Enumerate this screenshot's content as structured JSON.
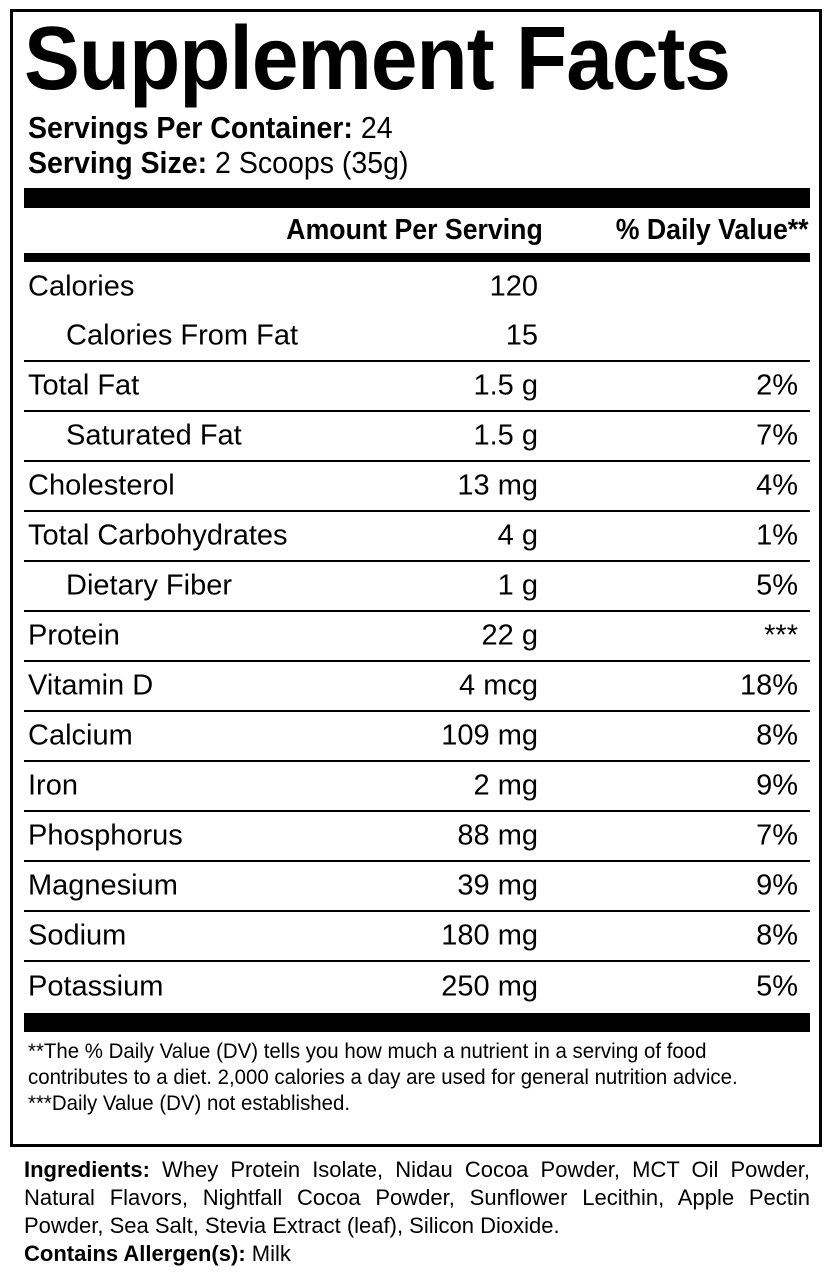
{
  "title": "Supplement Facts",
  "servings_per_container_label": "Servings Per Container:",
  "servings_per_container": "24",
  "serving_size_label": "Serving Size:",
  "serving_size": "2 Scoops (35g)",
  "header": {
    "amount": "Amount Per Serving",
    "dv": "% Daily Value**"
  },
  "rows": [
    {
      "name": "Calories",
      "amount": "120",
      "dv": ""
    },
    {
      "name": "Calories From Fat",
      "amount": "15",
      "dv": ""
    },
    {
      "name": "Total Fat",
      "amount": "1.5 g",
      "dv": "2%"
    },
    {
      "name": "Saturated Fat",
      "amount": "1.5 g",
      "dv": "7%"
    },
    {
      "name": "Cholesterol",
      "amount": "13 mg",
      "dv": "4%"
    },
    {
      "name": "Total Carbohydrates",
      "amount": "4 g",
      "dv": "1%"
    },
    {
      "name": "Dietary Fiber",
      "amount": "1 g",
      "dv": "5%"
    },
    {
      "name": "Protein",
      "amount": "22 g",
      "dv": "***"
    },
    {
      "name": "Vitamin D",
      "amount": "4 mcg",
      "dv": "18%"
    },
    {
      "name": "Calcium",
      "amount": "109 mg",
      "dv": "8%"
    },
    {
      "name": "Iron",
      "amount": "2 mg",
      "dv": "9%"
    },
    {
      "name": "Phosphorus",
      "amount": "88 mg",
      "dv": "7%"
    },
    {
      "name": "Magnesium",
      "amount": "39 mg",
      "dv": "9%"
    },
    {
      "name": "Sodium",
      "amount": "180 mg",
      "dv": "8%"
    },
    {
      "name": "Potassium",
      "amount": "250 mg",
      "dv": "5%"
    }
  ],
  "footnotes": {
    "dv_note": "**The % Daily Value (DV) tells you how much a nutrient in a serving of food contributes to a diet. 2,000 calories a day are used for general nutrition advice.",
    "not_established": "***Daily Value (DV) not established."
  },
  "ingredients_label": "Ingredients:",
  "ingredients": "Whey Protein Isolate, Nidau Cocoa Powder, MCT Oil Powder, Natural Flavors, Nightfall Cocoa Powder, Sunflower Lecithin, Apple Pectin Powder, Sea Salt, Stevia Extract (leaf), Silicon Dioxide.",
  "allergen_label": "Contains Allergen(s):",
  "allergen": "Milk"
}
